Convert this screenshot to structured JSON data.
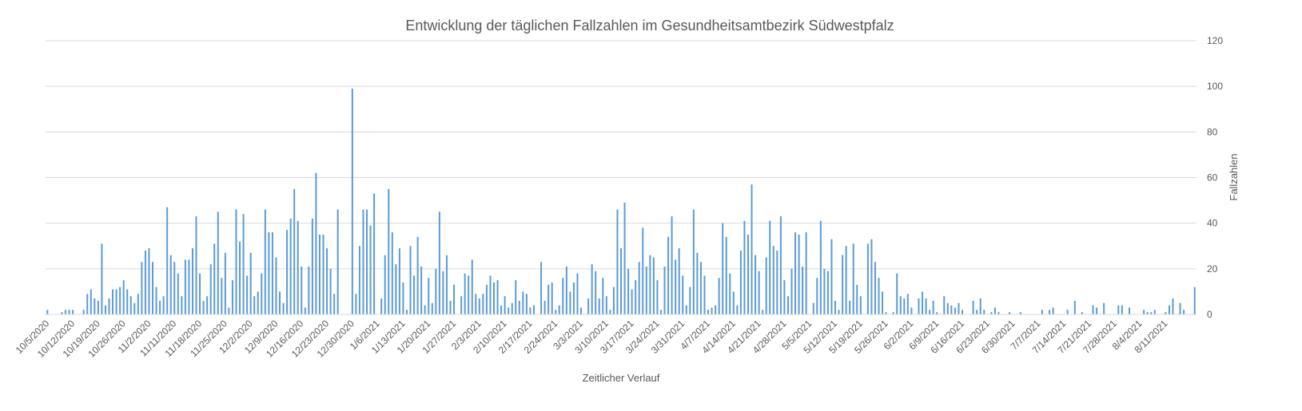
{
  "chart_data": {
    "type": "bar",
    "title": "Entwicklung der täglichen Fallzahlen im Gesundheitsamtbezirk Südwestpfalz",
    "x_label": "Zeitlicher Verlauf",
    "y_label": "Fallzahlen",
    "color": "#5b9bd5",
    "ylim": [
      0,
      120
    ],
    "yticks": [
      0,
      20,
      40,
      60,
      80,
      100,
      120
    ],
    "grid": true,
    "y_axis_side": "right",
    "categories": [
      "10/5/2020",
      null,
      null,
      null,
      null,
      null,
      null,
      "10/12/2020",
      null,
      null,
      null,
      null,
      null,
      null,
      "10/19/2020",
      null,
      null,
      null,
      null,
      null,
      null,
      "10/26/2020",
      null,
      null,
      null,
      null,
      null,
      null,
      "11/2/2020",
      null,
      null,
      null,
      null,
      null,
      null,
      "11/11/2020",
      null,
      null,
      null,
      null,
      null,
      null,
      "11/18/2020",
      null,
      null,
      null,
      null,
      null,
      null,
      "11/25/2020",
      null,
      null,
      null,
      null,
      null,
      null,
      "12/2/2020",
      null,
      null,
      null,
      null,
      null,
      null,
      "12/9/2020",
      null,
      null,
      null,
      null,
      null,
      null,
      "12/16/2020",
      null,
      null,
      null,
      null,
      null,
      null,
      "12/23/2020",
      null,
      null,
      null,
      null,
      null,
      null,
      "12/30/2020",
      null,
      null,
      null,
      null,
      null,
      null,
      "1/6/2021",
      null,
      null,
      null,
      null,
      null,
      null,
      "1/13/2021",
      null,
      null,
      null,
      null,
      null,
      null,
      "1/20/2021",
      null,
      null,
      null,
      null,
      null,
      null,
      "1/27/2021",
      null,
      null,
      null,
      null,
      null,
      null,
      "2/3/2021",
      null,
      null,
      null,
      null,
      null,
      null,
      "2/10/2021",
      null,
      null,
      null,
      null,
      null,
      null,
      "2/17/2021",
      null,
      null,
      null,
      null,
      null,
      null,
      "2/24/2021",
      null,
      null,
      null,
      null,
      null,
      null,
      "3/3/2021",
      null,
      null,
      null,
      null,
      null,
      null,
      "3/10/2021",
      null,
      null,
      null,
      null,
      null,
      null,
      "3/17/2021",
      null,
      null,
      null,
      null,
      null,
      null,
      "3/24/2021",
      null,
      null,
      null,
      null,
      null,
      null,
      "3/31/2021",
      null,
      null,
      null,
      null,
      null,
      null,
      "4/7/2021",
      null,
      null,
      null,
      null,
      null,
      null,
      "4/14/2021",
      null,
      null,
      null,
      null,
      null,
      null,
      "4/21/2021",
      null,
      null,
      null,
      null,
      null,
      null,
      "4/28/2021",
      null,
      null,
      null,
      null,
      null,
      null,
      "5/5/2021",
      null,
      null,
      null,
      null,
      null,
      null,
      "5/12/2021",
      null,
      null,
      null,
      null,
      null,
      null,
      "5/19/2021",
      null,
      null,
      null,
      null,
      null,
      null,
      "5/26/2021",
      null,
      null,
      null,
      null,
      null,
      null,
      "6/2/2021",
      null,
      null,
      null,
      null,
      null,
      null,
      "6/9/2021",
      null,
      null,
      null,
      null,
      null,
      null,
      "6/16/2021",
      null,
      null,
      null,
      null,
      null,
      null,
      "6/23/2021",
      null,
      null,
      null,
      null,
      null,
      null,
      "6/30/2021",
      null,
      null,
      null,
      null,
      null,
      null,
      "7/7/2021",
      null,
      null,
      null,
      null,
      null,
      null,
      "7/14/2021",
      null,
      null,
      null,
      null,
      null,
      null,
      "7/21/2021",
      null,
      null,
      null,
      null,
      null,
      null,
      "7/28/2021",
      null,
      null,
      null,
      null,
      null,
      null,
      "8/4/2021",
      null,
      null,
      null,
      null,
      null,
      null,
      "8/11/2021",
      null,
      null,
      null,
      null,
      null,
      null,
      null,
      null
    ],
    "values": [
      2,
      0,
      0,
      0,
      1,
      2,
      2,
      2,
      0,
      0,
      2,
      9,
      11,
      7,
      6,
      31,
      4,
      7,
      11,
      11,
      12,
      15,
      11,
      8,
      5,
      9,
      23,
      28,
      29,
      23,
      12,
      6,
      8,
      47,
      26,
      23,
      18,
      8,
      24,
      24,
      29,
      43,
      18,
      6,
      8,
      22,
      31,
      45,
      16,
      27,
      3,
      15,
      46,
      32,
      44,
      17,
      27,
      8,
      10,
      18,
      46,
      36,
      36,
      25,
      10,
      5,
      37,
      42,
      55,
      41,
      21,
      3,
      21,
      42,
      62,
      35,
      35,
      29,
      20,
      9,
      46,
      0,
      0,
      0,
      99,
      9,
      30,
      46,
      46,
      39,
      53,
      0,
      7,
      26,
      55,
      36,
      22,
      29,
      14,
      2,
      30,
      17,
      34,
      21,
      4,
      16,
      5,
      20,
      45,
      19,
      26,
      6,
      13,
      0,
      8,
      18,
      17,
      24,
      9,
      7,
      9,
      13,
      17,
      14,
      15,
      4,
      8,
      3,
      5,
      15,
      6,
      10,
      9,
      3,
      4,
      0,
      23,
      6,
      13,
      14,
      2,
      4,
      16,
      21,
      10,
      14,
      18,
      3,
      0,
      7,
      22,
      19,
      7,
      16,
      8,
      2,
      12,
      46,
      29,
      49,
      20,
      11,
      15,
      23,
      38,
      21,
      26,
      25,
      15,
      2,
      21,
      34,
      43,
      24,
      29,
      17,
      4,
      12,
      46,
      27,
      23,
      17,
      2,
      3,
      4,
      16,
      40,
      34,
      18,
      10,
      4,
      28,
      41,
      35,
      57,
      26,
      19,
      2,
      25,
      41,
      30,
      28,
      43,
      15,
      8,
      20,
      36,
      35,
      21,
      36,
      0,
      5,
      16,
      41,
      20,
      19,
      33,
      6,
      2,
      26,
      30,
      6,
      31,
      13,
      8,
      0,
      31,
      33,
      23,
      16,
      10,
      1,
      0,
      1,
      18,
      8,
      7,
      9,
      3,
      0,
      7,
      10,
      7,
      2,
      6,
      1,
      0,
      8,
      5,
      4,
      3,
      5,
      2,
      0,
      0,
      6,
      2,
      7,
      2,
      0,
      1,
      3,
      1,
      0,
      0,
      1,
      0,
      0,
      1,
      0,
      0,
      0,
      0,
      0,
      2,
      0,
      2,
      3,
      0,
      0,
      0,
      2,
      0,
      6,
      0,
      1,
      0,
      0,
      4,
      3,
      0,
      5,
      0,
      0,
      0,
      4,
      4,
      0,
      3,
      0,
      0,
      0,
      2,
      1,
      1,
      2,
      0,
      0,
      1,
      4,
      7,
      0,
      5,
      2,
      0,
      0,
      12
    ]
  }
}
